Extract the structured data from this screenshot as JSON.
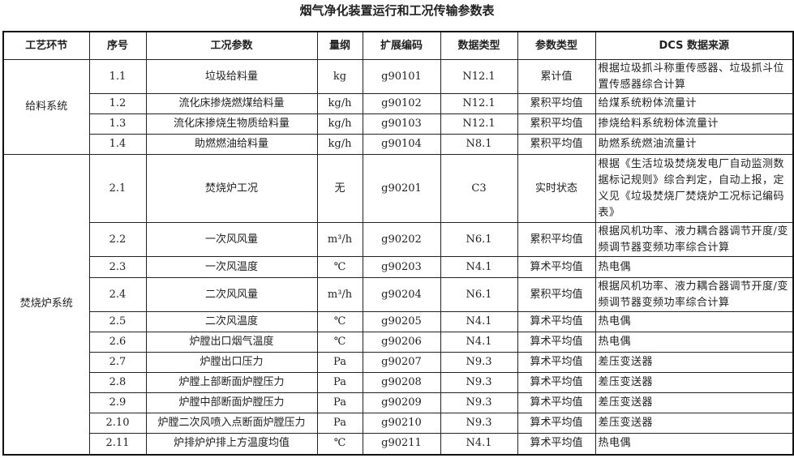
{
  "title": "烟气净化装置运行和工况传输参数表",
  "headers": [
    "工艺环节",
    "序号",
    "工况参数",
    "量纲",
    "扩展编码",
    "数据类型",
    "参数类型",
    "DCS 数据来源"
  ],
  "groups": [
    {
      "name": "给料系统",
      "rows": [
        {
          "seq": "1.1",
          "param": "垃圾给料量",
          "unit": "kg",
          "code": "g90101",
          "dtype": "N12.1",
          "ptype": "累计值",
          "source": "根据垃圾抓斗称重传感器、垃圾抓斗位置传感器综合计算"
        },
        {
          "seq": "1.2",
          "param": "流化床掺烧燃煤给料量",
          "unit": "kg/h",
          "code": "g90102",
          "dtype": "N12.1",
          "ptype": "累积平均值",
          "source": "给煤系统粉体流量计"
        },
        {
          "seq": "1.3",
          "param": "流化床掺烧生物质给料量",
          "unit": "kg/h",
          "code": "g90103",
          "dtype": "N12.1",
          "ptype": "累积平均值",
          "source": "掺烧给料系统粉体流量计"
        },
        {
          "seq": "1.4",
          "param": "助燃燃油给料量",
          "unit": "kg/h",
          "code": "g90104",
          "dtype": "N8.1",
          "ptype": "累积平均值",
          "source": "助燃系统燃油流量计"
        }
      ]
    },
    {
      "name": "焚烧炉系统",
      "rows": [
        {
          "seq": "2.1",
          "param": "焚烧炉工况",
          "unit": "无",
          "code": "g90201",
          "dtype": "C3",
          "ptype": "实时状态",
          "source": "根据《生活垃圾焚烧发电厂自动监测数据标记规则》综合判定，自动上报，定义见《垃圾焚烧厂焚烧炉工况标记编码表》"
        },
        {
          "seq": "2.2",
          "param": "一次风风量",
          "unit": "m³/h",
          "code": "g90202",
          "dtype": "N6.1",
          "ptype": "累积平均值",
          "source": "根据风机功率、液力耦合器调节开度/变频调节器变频功率综合计算"
        },
        {
          "seq": "2.3",
          "param": "一次风温度",
          "unit": "℃",
          "code": "g90203",
          "dtype": "N4.1",
          "ptype": "算术平均值",
          "source": "热电偶"
        },
        {
          "seq": "2.4",
          "param": "二次风风量",
          "unit": "m³/h",
          "code": "g90204",
          "dtype": "N6.1",
          "ptype": "累积平均值",
          "source": "根据风机功率、液力耦合器调节开度/变频调节器变频功率综合计算"
        },
        {
          "seq": "2.5",
          "param": "二次风温度",
          "unit": "℃",
          "code": "g90205",
          "dtype": "N4.1",
          "ptype": "算术平均值",
          "source": "热电偶"
        },
        {
          "seq": "2.6",
          "param": "炉膛出口烟气温度",
          "unit": "℃",
          "code": "g90206",
          "dtype": "N4.1",
          "ptype": "算术平均值",
          "source": "热电偶"
        },
        {
          "seq": "2.7",
          "param": "炉膛出口压力",
          "unit": "Pa",
          "code": "g90207",
          "dtype": "N9.3",
          "ptype": "算术平均值",
          "source": "差压变送器"
        },
        {
          "seq": "2.8",
          "param": "炉膛上部断面炉膛压力",
          "unit": "Pa",
          "code": "g90208",
          "dtype": "N9.3",
          "ptype": "算术平均值",
          "source": "差压变送器"
        },
        {
          "seq": "2.9",
          "param": "炉膛中部断面炉膛压力",
          "unit": "Pa",
          "code": "g90209",
          "dtype": "N9.3",
          "ptype": "算术平均值",
          "source": "差压变送器"
        },
        {
          "seq": "2.10",
          "param": "炉膛二次风喷入点断面炉膛压力",
          "unit": "Pa",
          "code": "g90210",
          "dtype": "N9.3",
          "ptype": "算术平均值",
          "source": "差压变送器"
        },
        {
          "seq": "2.11",
          "param": "炉排炉炉排上方温度均值",
          "unit": "℃",
          "code": "g90211",
          "dtype": "N4.1",
          "ptype": "算术平均值",
          "source": "热电偶"
        }
      ]
    }
  ]
}
